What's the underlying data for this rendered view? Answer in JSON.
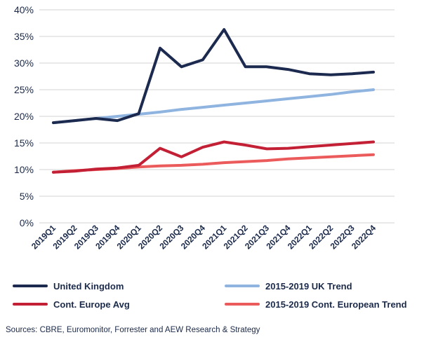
{
  "chart_data": {
    "type": "line",
    "categories": [
      "2019Q1",
      "2019Q2",
      "2019Q3",
      "2019Q4",
      "2020Q1",
      "2020Q2",
      "2020Q3",
      "2020Q4",
      "2021Q1",
      "2021Q2",
      "2021Q3",
      "2021Q4",
      "2022Q1",
      "2022Q2",
      "2022Q3",
      "2022Q4"
    ],
    "ylim": [
      0,
      40
    ],
    "yticks": [
      "0%",
      "5%",
      "10%",
      "15%",
      "20%",
      "25%",
      "30%",
      "35%",
      "40%"
    ],
    "grid": true,
    "legend_position": "bottom",
    "series": [
      {
        "name": "United Kingdom",
        "color": "#1c2a4f",
        "width": 4,
        "values": [
          18.8,
          19.2,
          19.6,
          19.2,
          20.5,
          32.8,
          29.3,
          30.6,
          36.3,
          29.3,
          29.3,
          28.8,
          28.0,
          27.8,
          28.0,
          28.3
        ]
      },
      {
        "name": "2015-2019 UK Trend",
        "color": "#8fb4e0",
        "width": 4,
        "values": [
          18.8,
          19.2,
          19.6,
          20.0,
          20.4,
          20.8,
          21.3,
          21.7,
          22.1,
          22.5,
          22.9,
          23.3,
          23.7,
          24.1,
          24.6,
          25.0
        ]
      },
      {
        "name": "Cont. Europe Avg",
        "color": "#c32036",
        "width": 4,
        "values": [
          9.5,
          9.7,
          10.1,
          10.3,
          10.8,
          14.0,
          12.4,
          14.2,
          15.2,
          14.6,
          13.9,
          14.0,
          14.3,
          14.6,
          14.9,
          15.2
        ]
      },
      {
        "name": "2015-2019 Cont. European Trend",
        "color": "#ec5b5b",
        "width": 4,
        "values": [
          9.5,
          9.8,
          10.0,
          10.2,
          10.5,
          10.7,
          10.8,
          11.0,
          11.3,
          11.5,
          11.7,
          12.0,
          12.2,
          12.4,
          12.6,
          12.8
        ]
      }
    ]
  },
  "footer": {
    "source": "Sources: CBRE, Euromonitor, Forrester and AEW Research & Strategy"
  }
}
